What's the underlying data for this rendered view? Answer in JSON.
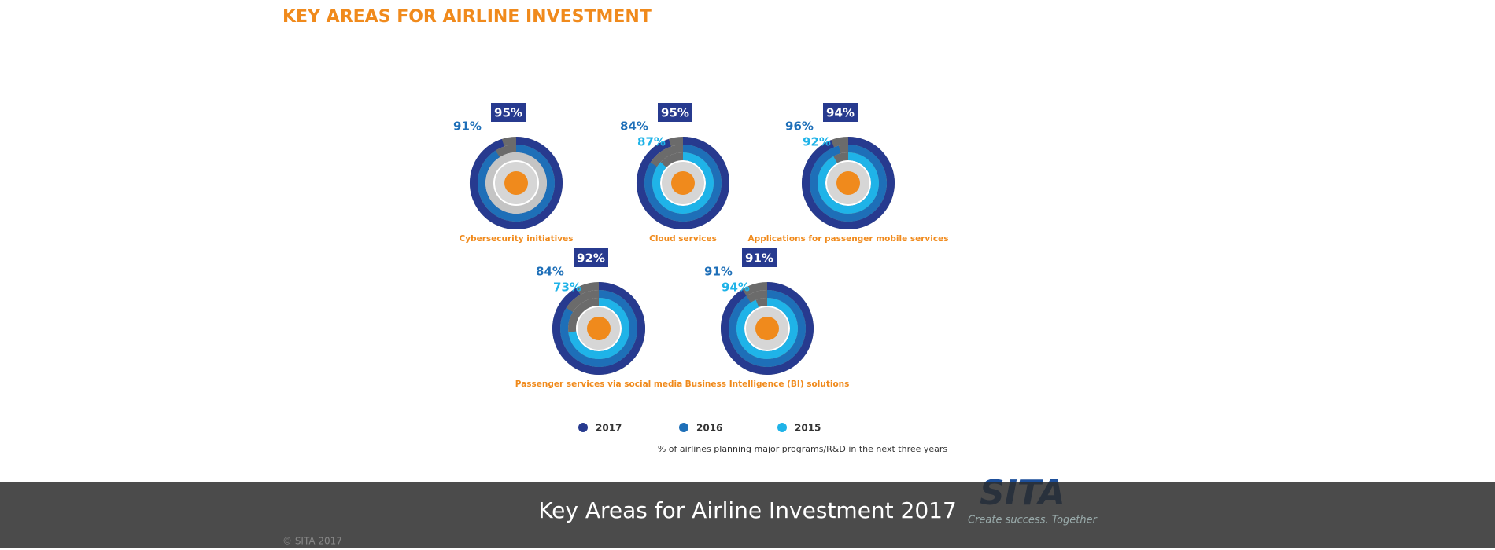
{
  "chart_data": {
    "type": "radial_bar",
    "title": "KEY AREAS FOR AIRLINE INVESTMENT",
    "footnote": "% of airlines planning major programs/R&D in the next three years",
    "categories": [
      "Cybersecurity initiatives",
      "Cloud services",
      "Applications for passenger mobile services",
      "Passenger services via social media",
      "Business Intelligence (BI) solutions"
    ],
    "series": [
      {
        "name": "2017",
        "color": "#273a8f",
        "values": [
          95,
          95,
          94,
          92,
          91
        ],
        "value_labels": [
          "95%",
          "95%",
          "94%",
          "92%",
          "91%"
        ]
      },
      {
        "name": "2016",
        "color": "#1e6fb8",
        "values": [
          91,
          84,
          96,
          84,
          91
        ],
        "value_labels": [
          "91%",
          "84%",
          "96%",
          "84%",
          "91%"
        ]
      },
      {
        "name": "2015",
        "color": "#1fb3e8",
        "values": [
          null,
          87,
          92,
          73,
          94
        ],
        "value_labels": [
          null,
          "87%",
          "92%",
          "73%",
          "94%"
        ]
      }
    ]
  },
  "caption": "Key Areas for Airline Investment 2017",
  "logo": {
    "name": "SITA",
    "tagline": "Create success. Together"
  },
  "copyright": "© SITA 2017"
}
